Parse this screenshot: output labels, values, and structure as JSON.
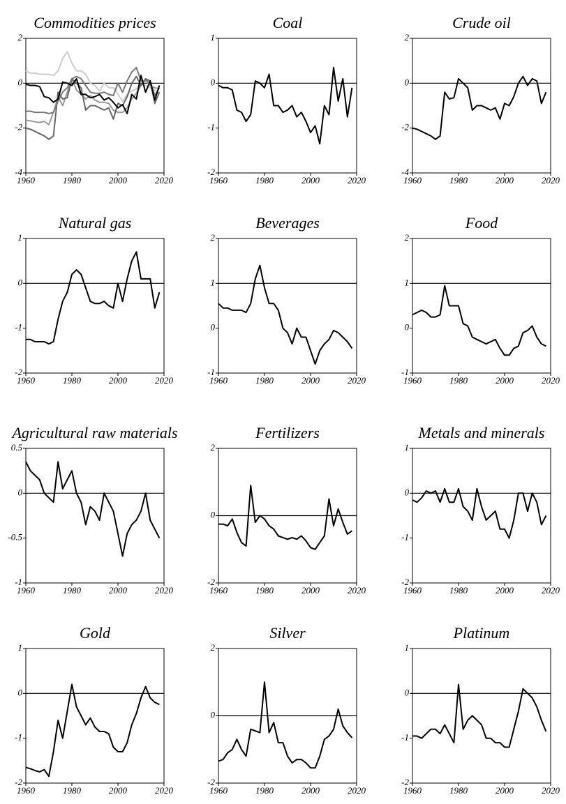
{
  "chart_data": [
    {
      "type": "line",
      "title": "Commodities prices",
      "x": [
        1960,
        1962,
        1964,
        1966,
        1968,
        1970,
        1972,
        1974,
        1976,
        1978,
        1980,
        1982,
        1984,
        1986,
        1988,
        1990,
        1992,
        1994,
        1996,
        1998,
        2000,
        2002,
        2004,
        2006,
        2008,
        2010,
        2012,
        2014,
        2016,
        2018
      ],
      "xlim": [
        1960,
        2020
      ],
      "xticks": [
        1960,
        1980,
        2000,
        2020
      ],
      "ylim": [
        -4,
        2
      ],
      "yticks": [
        -4,
        -2,
        0,
        2
      ],
      "hline": 0,
      "series": [
        {
          "color": "#cccccc",
          "values": [
            0.55,
            0.45,
            0.45,
            0.4,
            0.4,
            0.4,
            0.35,
            0.55,
            1.1,
            1.4,
            0.9,
            0.55,
            0.55,
            0.4,
            0.0,
            -0.1,
            -0.35,
            0.0,
            -0.2,
            -0.2,
            -0.5,
            -0.8,
            -0.5,
            -0.35,
            -0.25,
            -0.05,
            -0.1,
            -0.2,
            -0.3,
            -0.45
          ]
        },
        {
          "color": "#999999",
          "values": [
            -1.65,
            -1.68,
            -1.72,
            -1.75,
            -1.7,
            -1.85,
            -1.3,
            -0.6,
            -1.0,
            -0.4,
            0.2,
            -0.3,
            -0.5,
            -0.7,
            -0.55,
            -0.75,
            -0.85,
            -0.85,
            -0.9,
            -1.2,
            -1.3,
            -1.3,
            -1.1,
            -0.7,
            -0.45,
            -0.1,
            0.15,
            -0.1,
            -0.2,
            -0.25
          ]
        },
        {
          "color": "#666666",
          "values": [
            -2.0,
            -2.05,
            -2.15,
            -2.25,
            -2.35,
            -2.5,
            -2.35,
            -0.4,
            -0.7,
            -0.65,
            0.2,
            0.0,
            -0.2,
            -1.2,
            -1.0,
            -1.0,
            -1.1,
            -1.2,
            -1.1,
            -1.6,
            -0.9,
            -1.0,
            -0.6,
            0.0,
            0.3,
            -0.1,
            0.2,
            0.1,
            -0.9,
            -0.4
          ]
        },
        {
          "color": "#777777",
          "values": [
            -1.25,
            -1.25,
            -1.3,
            -1.3,
            -1.3,
            -1.35,
            -1.3,
            -0.8,
            -0.4,
            -0.2,
            0.2,
            0.3,
            0.2,
            -0.1,
            -0.4,
            -0.45,
            -0.45,
            -0.4,
            -0.5,
            -0.55,
            0.0,
            -0.4,
            0.1,
            0.5,
            0.7,
            0.1,
            0.1,
            0.1,
            -0.55,
            -0.2
          ]
        },
        {
          "color": "#000000",
          "values": [
            -0.05,
            -0.1,
            -0.1,
            -0.15,
            -0.6,
            -0.65,
            -0.85,
            -0.7,
            0.05,
            0.0,
            -0.1,
            0.2,
            -0.5,
            -0.5,
            -0.65,
            -0.6,
            -0.5,
            -0.75,
            -0.65,
            -0.85,
            -1.1,
            -0.95,
            -1.35,
            -0.5,
            -0.7,
            0.35,
            -0.4,
            0.1,
            -0.75,
            -0.1
          ]
        }
      ]
    },
    {
      "type": "line",
      "title": "Coal",
      "x": [
        1960,
        1962,
        1964,
        1966,
        1968,
        1970,
        1972,
        1974,
        1976,
        1978,
        1980,
        1982,
        1984,
        1986,
        1988,
        1990,
        1992,
        1994,
        1996,
        1998,
        2000,
        2002,
        2004,
        2006,
        2008,
        2010,
        2012,
        2014,
        2016,
        2018
      ],
      "xlim": [
        1960,
        2020
      ],
      "xticks": [
        1960,
        1980,
        2000,
        2020
      ],
      "ylim": [
        -2,
        1
      ],
      "yticks": [
        -2,
        -1,
        0,
        1
      ],
      "hline": 0,
      "series": [
        {
          "color": "#000000",
          "values": [
            -0.05,
            -0.1,
            -0.1,
            -0.15,
            -0.6,
            -0.65,
            -0.85,
            -0.7,
            0.05,
            0.0,
            -0.1,
            0.2,
            -0.5,
            -0.5,
            -0.65,
            -0.6,
            -0.5,
            -0.75,
            -0.65,
            -0.85,
            -1.1,
            -0.95,
            -1.35,
            -0.5,
            -0.7,
            0.35,
            -0.4,
            0.1,
            -0.75,
            -0.1
          ]
        }
      ]
    },
    {
      "type": "line",
      "title": "Crude oil",
      "x": [
        1960,
        1962,
        1964,
        1966,
        1968,
        1970,
        1972,
        1974,
        1976,
        1978,
        1980,
        1982,
        1984,
        1986,
        1988,
        1990,
        1992,
        1994,
        1996,
        1998,
        2000,
        2002,
        2004,
        2006,
        2008,
        2010,
        2012,
        2014,
        2016,
        2018
      ],
      "xlim": [
        1960,
        2020
      ],
      "xticks": [
        1960,
        1980,
        2000,
        2020
      ],
      "ylim": [
        -4,
        2
      ],
      "yticks": [
        -4,
        -2,
        0,
        2
      ],
      "hline": 0,
      "series": [
        {
          "color": "#000000",
          "values": [
            -2.0,
            -2.05,
            -2.15,
            -2.25,
            -2.35,
            -2.5,
            -2.35,
            -0.4,
            -0.7,
            -0.65,
            0.2,
            0.0,
            -0.2,
            -1.2,
            -1.0,
            -1.0,
            -1.1,
            -1.2,
            -1.1,
            -1.6,
            -0.9,
            -1.0,
            -0.6,
            0.0,
            0.3,
            -0.1,
            0.2,
            0.1,
            -0.9,
            -0.4
          ]
        }
      ]
    },
    {
      "type": "line",
      "title": "Natural gas",
      "x": [
        1960,
        1962,
        1964,
        1966,
        1968,
        1970,
        1972,
        1974,
        1976,
        1978,
        1980,
        1982,
        1984,
        1986,
        1988,
        1990,
        1992,
        1994,
        1996,
        1998,
        2000,
        2002,
        2004,
        2006,
        2008,
        2010,
        2012,
        2014,
        2016,
        2018
      ],
      "xlim": [
        1960,
        2020
      ],
      "xticks": [
        1960,
        1980,
        2000,
        2020
      ],
      "ylim": [
        -2,
        1
      ],
      "yticks": [
        -2,
        -1,
        0,
        1
      ],
      "hline": 0,
      "series": [
        {
          "color": "#000000",
          "values": [
            -1.25,
            -1.25,
            -1.3,
            -1.3,
            -1.3,
            -1.35,
            -1.3,
            -0.8,
            -0.4,
            -0.2,
            0.2,
            0.3,
            0.2,
            -0.1,
            -0.4,
            -0.45,
            -0.45,
            -0.4,
            -0.5,
            -0.55,
            0.0,
            -0.4,
            0.1,
            0.5,
            0.7,
            0.1,
            0.1,
            0.1,
            -0.55,
            -0.2
          ]
        }
      ]
    },
    {
      "type": "line",
      "title": "Beverages",
      "x": [
        1960,
        1962,
        1964,
        1966,
        1968,
        1970,
        1972,
        1974,
        1976,
        1978,
        1980,
        1982,
        1984,
        1986,
        1988,
        1990,
        1992,
        1994,
        1996,
        1998,
        2000,
        2002,
        2004,
        2006,
        2008,
        2010,
        2012,
        2014,
        2016,
        2018
      ],
      "xlim": [
        1960,
        2020
      ],
      "xticks": [
        1960,
        1980,
        2000,
        2020
      ],
      "ylim": [
        -1,
        2
      ],
      "yticks": [
        -1,
        0,
        1,
        2
      ],
      "hline": 1,
      "series": [
        {
          "color": "#000000",
          "values": [
            0.55,
            0.45,
            0.45,
            0.4,
            0.4,
            0.4,
            0.35,
            0.55,
            1.1,
            1.4,
            0.9,
            0.55,
            0.55,
            0.4,
            0.0,
            -0.1,
            -0.35,
            0.0,
            -0.2,
            -0.2,
            -0.5,
            -0.8,
            -0.5,
            -0.35,
            -0.25,
            -0.05,
            -0.1,
            -0.2,
            -0.3,
            -0.45
          ]
        }
      ]
    },
    {
      "type": "line",
      "title": "Food",
      "x": [
        1960,
        1962,
        1964,
        1966,
        1968,
        1970,
        1972,
        1974,
        1976,
        1978,
        1980,
        1982,
        1984,
        1986,
        1988,
        1990,
        1992,
        1994,
        1996,
        1998,
        2000,
        2002,
        2004,
        2006,
        2008,
        2010,
        2012,
        2014,
        2016,
        2018
      ],
      "xlim": [
        1960,
        2020
      ],
      "xticks": [
        1960,
        1980,
        2000,
        2020
      ],
      "ylim": [
        -1,
        2
      ],
      "yticks": [
        -1,
        0,
        1,
        2
      ],
      "hline": 1,
      "series": [
        {
          "color": "#000000",
          "values": [
            0.3,
            0.35,
            0.4,
            0.35,
            0.25,
            0.25,
            0.3,
            0.95,
            0.5,
            0.5,
            0.5,
            0.1,
            0.05,
            -0.2,
            -0.25,
            -0.3,
            -0.35,
            -0.3,
            -0.25,
            -0.45,
            -0.6,
            -0.6,
            -0.45,
            -0.4,
            -0.1,
            -0.05,
            0.05,
            -0.2,
            -0.35,
            -0.4
          ]
        }
      ]
    },
    {
      "type": "line",
      "title": "Agricultural raw materials",
      "x": [
        1960,
        1962,
        1964,
        1966,
        1968,
        1970,
        1972,
        1974,
        1976,
        1978,
        1980,
        1982,
        1984,
        1986,
        1988,
        1990,
        1992,
        1994,
        1996,
        1998,
        2000,
        2002,
        2004,
        2006,
        2008,
        2010,
        2012,
        2014,
        2016,
        2018
      ],
      "xlim": [
        1960,
        2020
      ],
      "xticks": [
        1960,
        1980,
        2000,
        2020
      ],
      "ylim": [
        -1,
        0.5
      ],
      "yticks": [
        -1,
        -0.5,
        0,
        0.5
      ],
      "hline": 0,
      "series": [
        {
          "color": "#000000",
          "values": [
            0.35,
            0.25,
            0.2,
            0.15,
            0.0,
            -0.05,
            -0.1,
            0.35,
            0.05,
            0.15,
            0.25,
            0.0,
            -0.1,
            -0.35,
            -0.15,
            -0.2,
            -0.3,
            0.0,
            -0.1,
            -0.2,
            -0.45,
            -0.7,
            -0.45,
            -0.35,
            -0.3,
            -0.2,
            0.0,
            -0.3,
            -0.4,
            -0.5
          ]
        }
      ]
    },
    {
      "type": "line",
      "title": "Fertilizers",
      "x": [
        1960,
        1962,
        1964,
        1966,
        1968,
        1970,
        1972,
        1974,
        1976,
        1978,
        1980,
        1982,
        1984,
        1986,
        1988,
        1990,
        1992,
        1994,
        1996,
        1998,
        2000,
        2002,
        2004,
        2006,
        2008,
        2010,
        2012,
        2014,
        2016,
        2018
      ],
      "xlim": [
        1960,
        2020
      ],
      "xticks": [
        1960,
        1980,
        2000,
        2020
      ],
      "ylim": [
        -2,
        2
      ],
      "yticks": [
        -2,
        0,
        2
      ],
      "hline": 0,
      "series": [
        {
          "color": "#000000",
          "values": [
            -0.25,
            -0.25,
            -0.3,
            -0.1,
            -0.5,
            -0.8,
            -0.9,
            0.9,
            -0.2,
            0.0,
            -0.1,
            -0.3,
            -0.4,
            -0.6,
            -0.65,
            -0.7,
            -0.65,
            -0.7,
            -0.6,
            -0.75,
            -0.95,
            -1.0,
            -0.8,
            -0.6,
            0.5,
            -0.3,
            0.2,
            -0.2,
            -0.55,
            -0.45
          ]
        }
      ]
    },
    {
      "type": "line",
      "title": "Metals and minerals",
      "x": [
        1960,
        1962,
        1964,
        1966,
        1968,
        1970,
        1972,
        1974,
        1976,
        1978,
        1980,
        1982,
        1984,
        1986,
        1988,
        1990,
        1992,
        1994,
        1996,
        1998,
        2000,
        2002,
        2004,
        2006,
        2008,
        2010,
        2012,
        2014,
        2016,
        2018
      ],
      "xlim": [
        1960,
        2020
      ],
      "xticks": [
        1960,
        1980,
        2000,
        2020
      ],
      "ylim": [
        -2,
        1
      ],
      "yticks": [
        -2,
        -1,
        0,
        1
      ],
      "hline": 0,
      "series": [
        {
          "color": "#000000",
          "values": [
            -0.15,
            -0.2,
            -0.1,
            0.05,
            0.0,
            0.05,
            -0.2,
            0.1,
            -0.2,
            -0.2,
            0.1,
            -0.3,
            -0.4,
            -0.6,
            0.1,
            -0.3,
            -0.6,
            -0.5,
            -0.4,
            -0.8,
            -0.8,
            -1.0,
            -0.6,
            0.0,
            0.0,
            -0.4,
            0.0,
            -0.2,
            -0.7,
            -0.5
          ]
        }
      ]
    },
    {
      "type": "line",
      "title": "Gold",
      "x": [
        1960,
        1962,
        1964,
        1966,
        1968,
        1970,
        1972,
        1974,
        1976,
        1978,
        1980,
        1982,
        1984,
        1986,
        1988,
        1990,
        1992,
        1994,
        1996,
        1998,
        2000,
        2002,
        2004,
        2006,
        2008,
        2010,
        2012,
        2014,
        2016,
        2018
      ],
      "xlim": [
        1960,
        2020
      ],
      "xticks": [
        1960,
        1980,
        2000,
        2020
      ],
      "ylim": [
        -2,
        1
      ],
      "yticks": [
        -2,
        -1,
        0,
        1
      ],
      "hline": 0,
      "series": [
        {
          "color": "#000000",
          "values": [
            -1.65,
            -1.68,
            -1.72,
            -1.75,
            -1.7,
            -1.85,
            -1.3,
            -0.6,
            -1.0,
            -0.4,
            0.2,
            -0.3,
            -0.5,
            -0.7,
            -0.55,
            -0.75,
            -0.85,
            -0.85,
            -0.9,
            -1.2,
            -1.3,
            -1.3,
            -1.1,
            -0.7,
            -0.45,
            -0.1,
            0.15,
            -0.1,
            -0.2,
            -0.25
          ]
        }
      ]
    },
    {
      "type": "line",
      "title": "Silver",
      "x": [
        1960,
        1962,
        1964,
        1966,
        1968,
        1970,
        1972,
        1974,
        1976,
        1978,
        1980,
        1982,
        1984,
        1986,
        1988,
        1990,
        1992,
        1994,
        1996,
        1998,
        2000,
        2002,
        2004,
        2006,
        2008,
        2010,
        2012,
        2014,
        2016,
        2018
      ],
      "xlim": [
        1960,
        2020
      ],
      "xticks": [
        1960,
        1980,
        2000,
        2020
      ],
      "ylim": [
        -2,
        2
      ],
      "yticks": [
        -2,
        0,
        2
      ],
      "hline": 0,
      "series": [
        {
          "color": "#000000",
          "values": [
            -1.35,
            -1.3,
            -1.1,
            -1.0,
            -0.7,
            -1.0,
            -1.2,
            -0.4,
            -0.45,
            -0.5,
            1.0,
            -0.5,
            -0.2,
            -0.8,
            -0.8,
            -1.2,
            -1.4,
            -1.3,
            -1.3,
            -1.4,
            -1.55,
            -1.55,
            -1.2,
            -0.7,
            -0.6,
            -0.4,
            0.2,
            -0.3,
            -0.5,
            -0.65
          ]
        }
      ]
    },
    {
      "type": "line",
      "title": "Platinum",
      "x": [
        1960,
        1962,
        1964,
        1966,
        1968,
        1970,
        1972,
        1974,
        1976,
        1978,
        1980,
        1982,
        1984,
        1986,
        1988,
        1990,
        1992,
        1994,
        1996,
        1998,
        2000,
        2002,
        2004,
        2006,
        2008,
        2010,
        2012,
        2014,
        2016,
        2018
      ],
      "xlim": [
        1960,
        2020
      ],
      "xticks": [
        1960,
        1980,
        2000,
        2020
      ],
      "ylim": [
        -2,
        1
      ],
      "yticks": [
        -2,
        -1,
        0,
        1
      ],
      "hline": 0,
      "series": [
        {
          "color": "#000000",
          "values": [
            -0.95,
            -0.95,
            -1.0,
            -0.9,
            -0.8,
            -0.8,
            -0.9,
            -0.7,
            -0.9,
            -1.1,
            0.2,
            -0.8,
            -0.6,
            -0.5,
            -0.6,
            -0.7,
            -1.0,
            -1.0,
            -1.1,
            -1.1,
            -1.2,
            -1.2,
            -0.8,
            -0.4,
            0.1,
            0.0,
            -0.1,
            -0.3,
            -0.6,
            -0.85
          ]
        }
      ]
    }
  ]
}
